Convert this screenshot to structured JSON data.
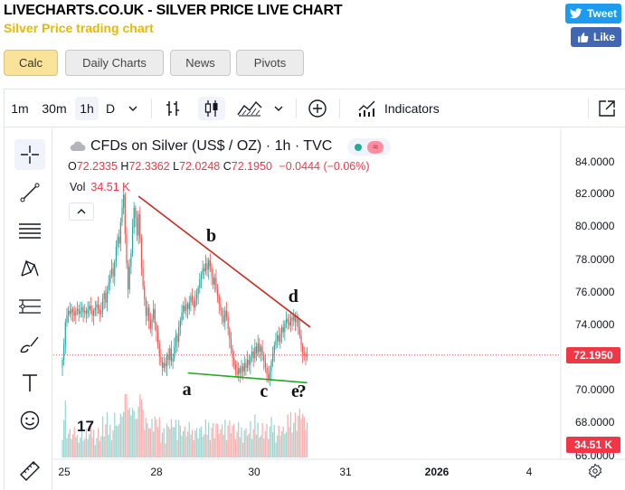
{
  "header": {
    "site_title": "LIVECHARTS.CO.UK - SILVER PRICE LIVE CHART",
    "subtitle": "Silver Price trading chart",
    "tweet_label": "Tweet",
    "like_label": "Like"
  },
  "page_tabs": [
    "Calc",
    "Daily Charts",
    "News",
    "Pivots"
  ],
  "toolbar": {
    "intervals": [
      "1m",
      "30m",
      "1h",
      "D"
    ],
    "active_interval": "1h",
    "indicators_label": "Indicators"
  },
  "legend": {
    "symbol": "CFDs on Silver (US$ / OZ) · 1h · TVC",
    "open_label": "O",
    "open": "72.2335",
    "high_label": "H",
    "high": "72.3362",
    "low_label": "L",
    "low": "72.0248",
    "close_label": "C",
    "close": "72.1950",
    "change": "−0.0444 (−0.06%)",
    "vol_label": "Vol",
    "vol": "34.51 K"
  },
  "price_tags": {
    "last_price": "72.1950",
    "last_volume": "34.51 K"
  },
  "tv_logo": "17",
  "colors": {
    "up": "#26a69a",
    "down": "#ef5350",
    "trendline_top": "#cc2a1f",
    "trendline_bottom": "#22aa22",
    "accent": "#f23645"
  },
  "chart_data": {
    "type": "candlestick",
    "symbol": "CFDs on Silver (US$ / OZ)",
    "interval": "1h",
    "y_ticks": [
      "84.0000",
      "82.0000",
      "80.0000",
      "78.0000",
      "76.0000",
      "74.0000",
      "70.0000",
      "68.0000",
      "66.0000"
    ],
    "ylim": [
      65.5,
      85.5
    ],
    "x_ticks": [
      {
        "label": "25",
        "bar": 0
      },
      {
        "label": "28",
        "bar": 55
      },
      {
        "label": "30",
        "bar": 117
      },
      {
        "label": "31",
        "bar": 178
      },
      {
        "label": "2026",
        "bar": 240
      },
      {
        "label": "4",
        "bar": 302
      }
    ],
    "closes": [
      71.9,
      72.8,
      74.2,
      74.6,
      74.9,
      74.7,
      75.0,
      74.8,
      74.6,
      74.9,
      75.0,
      74.7,
      74.9,
      75.1,
      74.8,
      74.9,
      74.7,
      75.0,
      75.2,
      74.9,
      74.6,
      74.9,
      75.1,
      75.3,
      75.0,
      74.7,
      74.9,
      75.6,
      76.0,
      75.4,
      76.2,
      76.6,
      77.1,
      77.5,
      77.0,
      77.9,
      78.8,
      79.4,
      79.0,
      80.3,
      81.2,
      82.0,
      79.6,
      77.8,
      76.2,
      77.6,
      78.4,
      80.0,
      81.2,
      80.6,
      79.5,
      80.8,
      79.3,
      77.5,
      76.4,
      75.6,
      74.6,
      75.1,
      74.3,
      73.8,
      74.4,
      75.0,
      74.1,
      73.6,
      72.9,
      72.1,
      71.8,
      71.4,
      71.7,
      71.5,
      72.2,
      71.9,
      72.6,
      71.8,
      72.0,
      72.7,
      73.4,
      73.0,
      73.9,
      74.3,
      74.8,
      75.2,
      74.9,
      75.3,
      75.0,
      75.4,
      75.8,
      75.5,
      75.1,
      75.6,
      75.9,
      76.3,
      76.8,
      77.1,
      77.5,
      77.3,
      77.8,
      77.4,
      78.0,
      77.6,
      77.0,
      76.5,
      76.9,
      76.2,
      75.8,
      75.3,
      74.9,
      74.6,
      74.2,
      74.9,
      74.5,
      73.8,
      73.2,
      72.6,
      72.0,
      71.6,
      71.3,
      71.0,
      71.4,
      71.1,
      71.5,
      71.2,
      71.7,
      71.4,
      71.9,
      71.6,
      72.1,
      72.4,
      72.0,
      72.7,
      72.3,
      72.9,
      72.4,
      72.7,
      72.2,
      71.8,
      71.4,
      71.0,
      70.7,
      71.2,
      71.8,
      72.3,
      72.8,
      73.1,
      73.4,
      73.0,
      73.5,
      73.9,
      73.6,
      74.1,
      74.4,
      74.2,
      74.0,
      74.5,
      74.3,
      74.6,
      74.2,
      74.4,
      73.9,
      73.4,
      72.8,
      72.3,
      72.2,
      72.1,
      72.2
    ]
  },
  "trendlines": [
    {
      "from": {
        "bar": 51,
        "price": 81.9
      },
      "to": {
        "bar": 166,
        "price": 73.9
      }
    },
    {
      "from": {
        "bar": 84,
        "price": 71.1
      },
      "to": {
        "bar": 164,
        "price": 70.5
      }
    }
  ],
  "annotations": [
    {
      "text": "a",
      "bar": 84,
      "price": 70.0
    },
    {
      "text": "b",
      "bar": 100,
      "price": 79.4
    },
    {
      "text": "c",
      "bar": 136,
      "price": 69.9
    },
    {
      "text": "d",
      "bar": 155,
      "price": 75.7
    },
    {
      "text": "e",
      "bar": 157,
      "price": 69.9
    },
    {
      "text": "?",
      "bar": 161,
      "price": 69.9
    }
  ]
}
